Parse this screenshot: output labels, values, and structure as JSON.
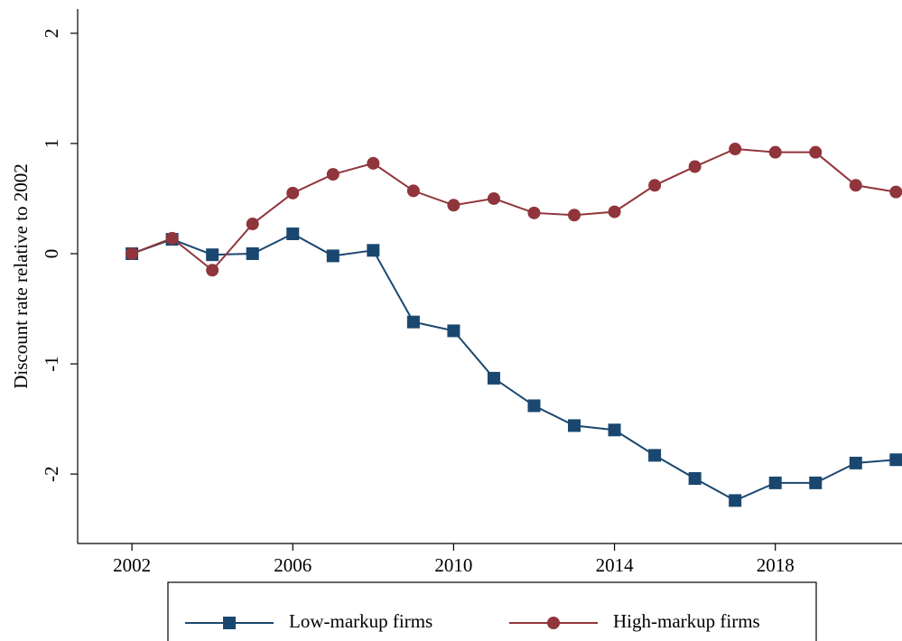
{
  "chart_data": {
    "type": "line",
    "y_label": "Discount rate relative to 2002",
    "x": [
      2002,
      2003,
      2004,
      2005,
      2006,
      2007,
      2008,
      2009,
      2010,
      2011,
      2012,
      2013,
      2014,
      2015,
      2016,
      2017,
      2018,
      2019,
      2020,
      2021
    ],
    "series": [
      {
        "name": "Low-markup firms",
        "color": "#1a476f",
        "marker": "square",
        "values": [
          0,
          0.13,
          -0.01,
          0,
          0.18,
          -0.02,
          0.03,
          -0.62,
          -0.7,
          -1.13,
          -1.38,
          -1.56,
          -1.6,
          -1.83,
          -2.04,
          -2.24,
          -2.08,
          -2.08,
          -1.9,
          -1.87
        ]
      },
      {
        "name": "High-markup firms",
        "color": "#90353b",
        "marker": "circle",
        "values": [
          0,
          0.14,
          -0.15,
          0.27,
          0.55,
          0.72,
          0.82,
          0.57,
          0.44,
          0.5,
          0.37,
          0.35,
          0.38,
          0.62,
          0.79,
          0.95,
          0.92,
          0.92,
          0.62,
          0.56
        ]
      }
    ],
    "xlim": [
      2000.65,
      2021.15
    ],
    "xticks": [
      2002,
      2006,
      2010,
      2014,
      2018
    ],
    "ylim": [
      -2.63,
      2.22
    ],
    "yticks": [
      -2,
      -1,
      0,
      1,
      2
    ],
    "grid": false,
    "legend": "bottom"
  }
}
